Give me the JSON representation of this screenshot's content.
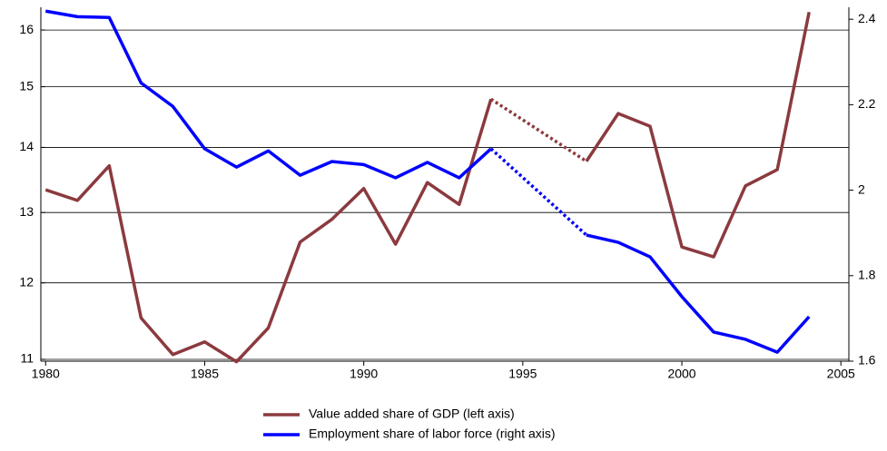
{
  "chart_data": {
    "type": "line",
    "x": [
      1980,
      1981,
      1982,
      1983,
      1984,
      1985,
      1986,
      1987,
      1988,
      1989,
      1990,
      1991,
      1992,
      1993,
      1994,
      1995,
      1996,
      1997,
      1998,
      1999,
      2000,
      2001,
      2002,
      2003,
      2004
    ],
    "series": [
      {
        "name": "Value added share of GDP (left axis)",
        "color": "#8b3a3e",
        "axis": "y",
        "values": [
          13.34,
          13.18,
          13.71,
          11.53,
          11.06,
          11.22,
          10.97,
          11.4,
          12.57,
          12.9,
          13.36,
          12.54,
          13.45,
          13.12,
          14.79,
          null,
          null,
          13.78,
          14.55,
          14.34,
          12.5,
          12.36,
          13.4,
          13.65,
          16.33
        ]
      },
      {
        "name": "Employment share of labor force (right axis)",
        "color": "#0000ff",
        "axis": "y2",
        "values": [
          2.419,
          2.406,
          2.404,
          2.251,
          2.196,
          2.097,
          2.054,
          2.092,
          2.035,
          2.067,
          2.06,
          2.029,
          2.065,
          2.029,
          2.097,
          null,
          null,
          1.895,
          1.878,
          1.844,
          1.751,
          1.668,
          1.651,
          1.621,
          1.704
        ]
      }
    ],
    "xlim": [
      1979.85,
      2005.25
    ],
    "xticks": [
      1980,
      1985,
      1990,
      1995,
      2000,
      2005
    ],
    "ylim": [
      10.977,
      16.42
    ],
    "yticks": [
      11,
      12,
      13,
      14,
      15,
      16
    ],
    "ylog": true,
    "y2lim": [
      1.6,
      2.428
    ],
    "y2ticks": [
      1.6,
      1.8,
      2,
      2.2,
      2.4
    ],
    "grid": true,
    "gaps_dotted": true
  }
}
